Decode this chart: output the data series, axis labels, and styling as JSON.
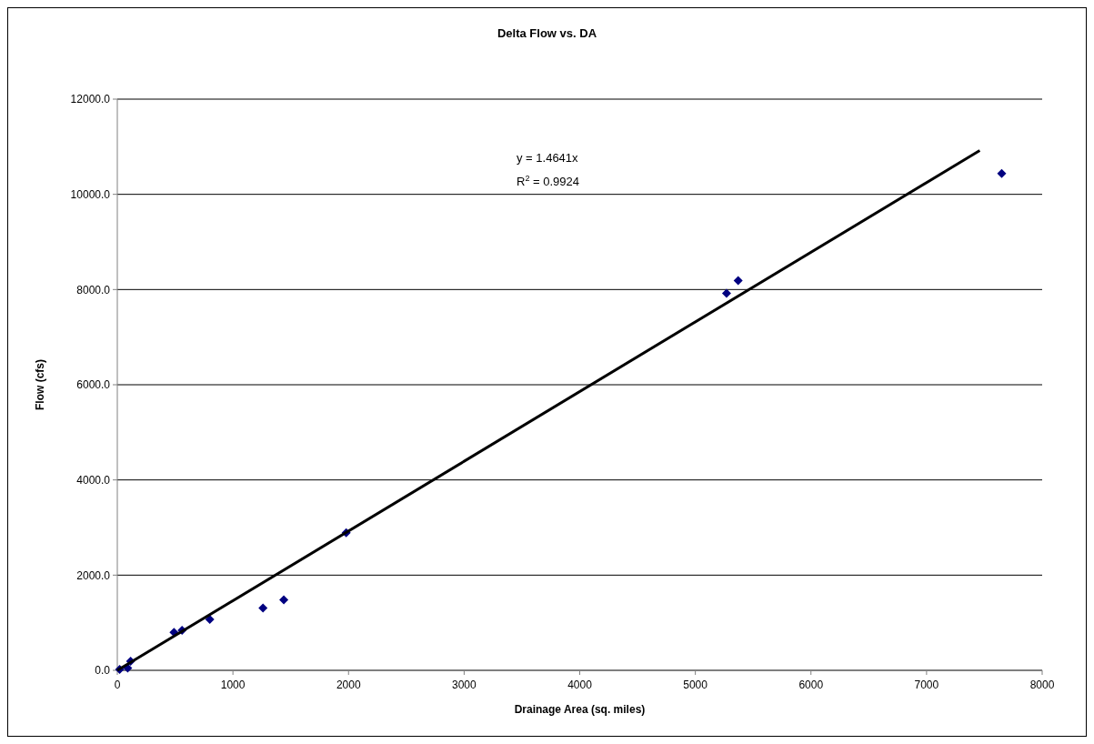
{
  "chart_data": {
    "type": "scatter",
    "title": "Delta Flow vs. DA",
    "xlabel": "Drainage Area (sq. miles)",
    "ylabel": "Flow (cfs)",
    "xlim": [
      0,
      8000
    ],
    "xticks": [
      0,
      1000,
      2000,
      3000,
      4000,
      5000,
      6000,
      7000,
      8000
    ],
    "ylim": [
      0,
      12000
    ],
    "yticks": [
      {
        "value": 0,
        "label": "0.0"
      },
      {
        "value": 2000,
        "label": "2000.0"
      },
      {
        "value": 4000,
        "label": "4000.0"
      },
      {
        "value": 6000,
        "label": "6000.0"
      },
      {
        "value": 8000,
        "label": "8000.0"
      },
      {
        "value": 10000,
        "label": "10000.0"
      },
      {
        "value": 12000,
        "label": "12000.0"
      }
    ],
    "grid": "y",
    "series": [
      {
        "color": "#000080",
        "marker": "diamond",
        "x": [
          20,
          90,
          115,
          490,
          560,
          800,
          1260,
          1440,
          1980,
          5270,
          5370,
          7650
        ],
        "values": [
          20,
          50,
          190,
          800,
          840,
          1070,
          1310,
          1480,
          2890,
          7920,
          8190,
          10440
        ]
      },
      {
        "type": "line",
        "color": "#000000",
        "x": [
          0,
          7460
        ],
        "values": [
          0,
          10920
        ]
      }
    ],
    "annotations": [
      "y = 1.4641x",
      "R$^{2}$ = 0.9924"
    ]
  }
}
